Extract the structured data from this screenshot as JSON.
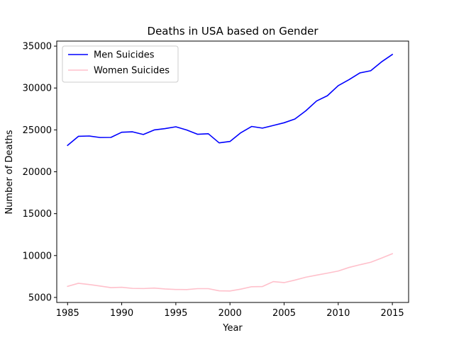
{
  "chart_data": {
    "type": "line",
    "title": "Deaths in USA based on Gender",
    "xlabel": "Year",
    "ylabel": "Number of Deaths",
    "xlim": [
      1984,
      2016.5
    ],
    "ylim": [
      4400,
      35600
    ],
    "xticks": [
      1985,
      1990,
      1995,
      2000,
      2005,
      2010,
      2015
    ],
    "yticks": [
      5000,
      10000,
      15000,
      20000,
      25000,
      30000,
      35000
    ],
    "legend_position": "top-left",
    "x": [
      1985,
      1986,
      1987,
      1988,
      1989,
      1990,
      1991,
      1992,
      1993,
      1994,
      1995,
      1996,
      1997,
      1998,
      1999,
      2000,
      2001,
      2002,
      2003,
      2004,
      2005,
      2006,
      2007,
      2008,
      2009,
      2010,
      2011,
      2012,
      2013,
      2014,
      2015
    ],
    "series": [
      {
        "name": "Men Suicides",
        "color": "#0000ff",
        "values": [
          23150,
          24230,
          24270,
          24090,
          24100,
          24720,
          24770,
          24450,
          24990,
          25150,
          25370,
          24990,
          24480,
          24540,
          23450,
          23620,
          24660,
          25410,
          25210,
          25530,
          25850,
          26300,
          27270,
          28450,
          29080,
          30280,
          31000,
          31800,
          32060,
          33120,
          34000
        ]
      },
      {
        "name": "Women Suicides",
        "color": "#ffc0cb",
        "values": [
          6320,
          6690,
          6540,
          6360,
          6170,
          6210,
          6080,
          6060,
          6120,
          6010,
          5950,
          5940,
          6050,
          6050,
          5790,
          5770,
          5990,
          6280,
          6300,
          6890,
          6770,
          7070,
          7410,
          7660,
          7900,
          8150,
          8580,
          8900,
          9200,
          9700,
          10220
        ]
      }
    ]
  }
}
